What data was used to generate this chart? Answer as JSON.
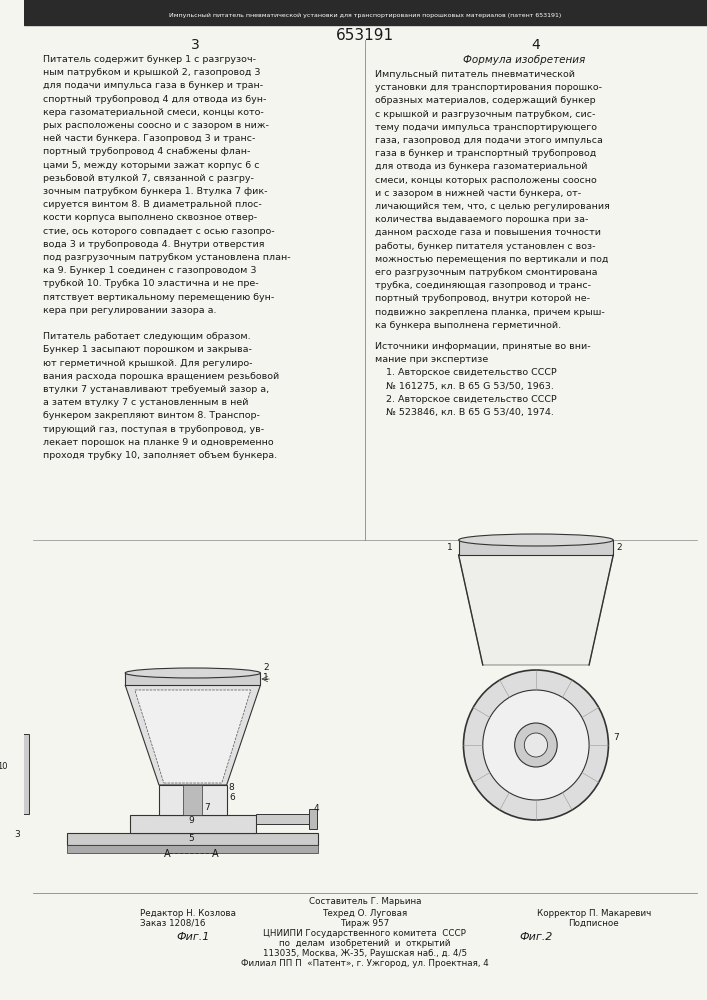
{
  "patent_number": "653191",
  "page_numbers": [
    "3",
    "4"
  ],
  "col1_header": "3",
  "col2_header": "4",
  "col1_text": [
    "Питатель содержит бункер 1 с разгрузоч-",
    "ным патрубком и крышкой 2, газопровод 3",
    "для подачи импульса газа в бункер и тран-",
    "спортный трубопровод 4 для отвода из бун-",
    "кера газоматериальной смеси, концы кото-",
    "рых расположены соосно и с зазором в ниж-",
    "ней части бункера. Газопровод 3 и транс-",
    "портный трубопровод 4 снабжены флан-",
    "цами 5, между которыми зажат корпус 6 с",
    "резьбовой втулкой 7, связанной с разгру-",
    "зочным патрубком бункера 1. Втулка 7 фик-",
    "сируется винтом 8. В диаметральной плос-",
    "кости корпуса выполнено сквозное отвер-",
    "стие, ось которого совпадает с осью газопро-",
    "вода 3 и трубопровода 4. Внутри отверстия",
    "под разгрузочным патрубком установлена план-",
    "ка 9. Бункер 1 соединен с газопроводом 3",
    "трубкой 10. Трубка 10 эластична и не пре-",
    "пятствует вертикальному перемещению бун-",
    "кера при регулировании зазора а.",
    "",
    "Питатель работает следующим образом.",
    "Бункер 1 засыпают порошком и закрыва-",
    "ют герметичной крышкой. Для регулиро-",
    "вания расхода порошка вращением резьбовой",
    "втулки 7 устанавливают требуемый зазор а,",
    "а затем втулку 7 с установленным в ней",
    "бункером закрепляют винтом 8. Транспор-",
    "тирующий газ, поступая в трубопровод, ув-",
    "лекает порошок на планке 9 и одновременно",
    "проходя трубку 10, заполняет объем бункера."
  ],
  "col2_formula_title": "Формула изобретения",
  "col2_text": [
    "Импульсный питатель пневматической",
    "установки для транспортирования порошко-",
    "образных материалов, содержащий бункер",
    "с крышкой и разгрузочным патрубком, сис-",
    "тему подачи импульса транспортирующего",
    "газа, газопровод для подачи этого импульса",
    "газа в бункер и транспортный трубопровод",
    "для отвода из бункера газоматериальной",
    "смеси, концы которых расположены соосно",
    "и с зазором в нижней части бункера, от-",
    "личающийся тем, что, с целью регулирования",
    "количества выдаваемого порошка при за-",
    "данном расходе газа и повышения точности",
    "работы, бункер питателя установлен с воз-",
    "можностью перемещения по вертикали и под",
    "его разгрузочным патрубком смонтирована",
    "трубка, соединяющая газопровод и транс-",
    "портный трубопровод, внутри которой не-",
    "подвижно закреплена планка, причем крыш-",
    "ка бункера выполнена герметичной."
  ],
  "sources_title": "Источники информации, принятые во вни-",
  "sources_title2": "мание при экспертизе",
  "sources": [
    "1. Авторское свидетельство СССР",
    "№ 161275, кл. В 65 G 53/50, 1963.",
    "2. Авторское свидетельство СССР",
    "№ 523846, кл. В 65 G 53/40, 1974."
  ],
  "fig1_label": "Фиг.1",
  "fig2_label": "Фиг.2",
  "fig2_section_label": "А-А",
  "footer_line1": "Составитель Г. Марьина",
  "footer_line2_left": "Редактор Н. Козлова",
  "footer_line2_mid": "Техред О. Луговая",
  "footer_line2_right": "Корректор П. Макаревич",
  "footer_line3_left": "Заказ 1208/16",
  "footer_line3_mid": "Тираж 957",
  "footer_line3_right": "Подписное",
  "footer_line4": "ЦНИИПИ Государственного комитета  СССР",
  "footer_line5": "по  делам  изобретений  и  открытий",
  "footer_line6": "113035, Москва, Ж-35, Раушская наб., д. 4/5",
  "footer_line7": "Филиал ПП П  «Патент», г. Ужгород, ул. Проектная, 4",
  "bg_color": "#f5f5f0",
  "text_color": "#1a1a1a",
  "header_stripe_color": "#333333"
}
